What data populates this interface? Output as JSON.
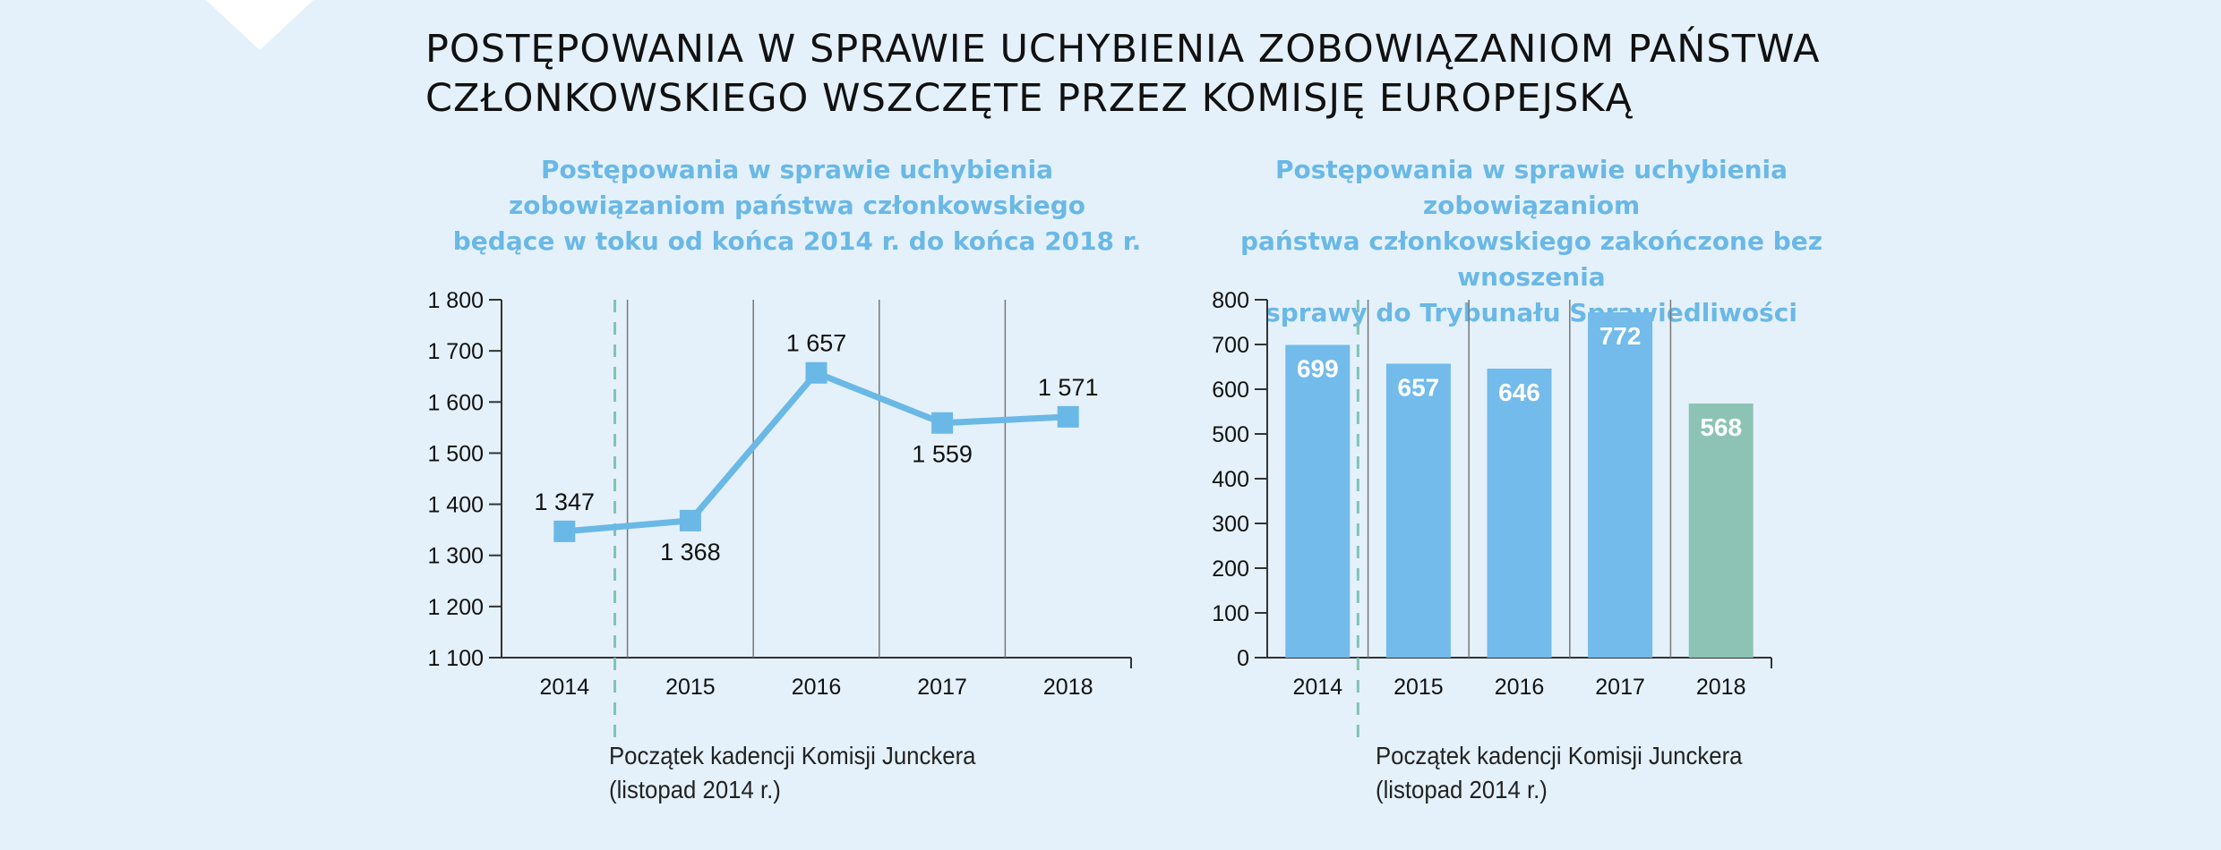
{
  "title": "POSTĘPOWANIA W SPRAWIE UCHYBIENIA ZOBOWIĄZANIOM PAŃSTWA\nCZŁONKOWSKIEGO WSZCZĘTE PRZEZ KOMISJĘ EUROPEJSKĄ",
  "colors": {
    "background": "#e4f1fb",
    "accent_blue": "#6ab8e6",
    "bar_blue": "#72bbeb",
    "bar_green": "#8cc3b5",
    "dashed_line": "#7fc4b4"
  },
  "chart_data": [
    {
      "type": "line",
      "title": "Postępowania w sprawie uchybienia\nzobowiązaniom państwa członkowskiego\nbędące w toku od końca 2014 r. do końca 2018 r.",
      "categories": [
        "2014",
        "2015",
        "2016",
        "2017",
        "2018"
      ],
      "values": [
        1347,
        1368,
        1657,
        1559,
        1571
      ],
      "value_labels": [
        "1 347",
        "1 368",
        "1 657",
        "1 559",
        "1 571"
      ],
      "ylim": [
        1100,
        1800
      ],
      "yticks": [
        "1 100",
        "1 200",
        "1 300",
        "1 400",
        "1 500",
        "1 600",
        "1 700",
        "1 800"
      ],
      "annotation": "Początek kadencji Komisji Junckera\n(listopad 2014 r.)",
      "grid": "vertical"
    },
    {
      "type": "bar",
      "title": "Postępowania w sprawie uchybienia zobowiązaniom\npaństwa członkowskiego zakończone bez wnoszenia\nsprawy do Trybunału Sprawiedliwości",
      "categories": [
        "2014",
        "2015",
        "2016",
        "2017",
        "2018"
      ],
      "values": [
        699,
        657,
        646,
        772,
        568
      ],
      "value_labels": [
        "699",
        "657",
        "646",
        "772",
        "568"
      ],
      "bar_colors": [
        "#72bbeb",
        "#72bbeb",
        "#72bbeb",
        "#72bbeb",
        "#8cc3b5"
      ],
      "ylim": [
        0,
        800
      ],
      "yticks": [
        "0",
        "100",
        "200",
        "300",
        "400",
        "500",
        "600",
        "700",
        "800"
      ],
      "annotation": "Początek kadencji Komisji Junckera\n(listopad 2014 r.)",
      "grid": "vertical"
    }
  ]
}
